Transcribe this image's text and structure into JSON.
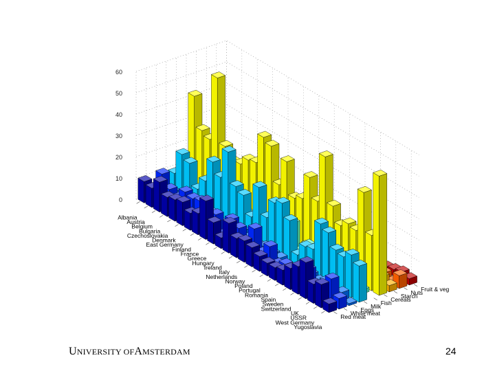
{
  "footer": {
    "institution_first_u": "U",
    "institution_rest1": "NIVERSITY OF",
    "institution_a": "A",
    "institution_rest2": "MSTERDAM",
    "page_number": "24"
  },
  "chart_data": {
    "type": "bar3d",
    "title": "",
    "z_ticks": [
      "0",
      "10",
      "20",
      "30",
      "40",
      "50",
      "60"
    ],
    "zlim": [
      0,
      60
    ],
    "countries": [
      "Albania",
      "Austria",
      "Belgium",
      "Bulgaria",
      "Czechoslovakia",
      "Denmark",
      "East Germany",
      "Finland",
      "France",
      "Greece",
      "Hungary",
      "Ireland",
      "Italy",
      "Netherlands",
      "Norway",
      "Poland",
      "Portugal",
      "Romania",
      "Spain",
      "Sweden",
      "Switzerland",
      "UK",
      "USSR",
      "West Germany",
      "Yugoslavia"
    ],
    "series": [
      {
        "name": "Red meat",
        "color": "#0000a8",
        "values": [
          10,
          9,
          14,
          9,
          10,
          11,
          8,
          10,
          18,
          10,
          5,
          14,
          9,
          10,
          9,
          7,
          6,
          6,
          7,
          10,
          13,
          17,
          9,
          11,
          4
        ]
      },
      {
        "name": "White meat",
        "color": "#0028ff",
        "values": [
          1,
          14,
          9,
          7,
          12,
          11,
          12,
          5,
          10,
          3,
          12,
          10,
          5,
          14,
          5,
          10,
          4,
          6,
          3,
          8,
          10,
          5,
          5,
          12,
          5
        ]
      },
      {
        "name": "Eggs",
        "color": "#0070ff",
        "values": [
          1,
          4,
          4,
          3,
          4,
          4,
          5,
          3,
          3,
          3,
          5,
          4,
          3,
          4,
          3,
          3,
          1,
          2,
          3,
          4,
          3,
          5,
          2,
          4,
          1
        ]
      },
      {
        "name": "Milk",
        "color": "#00c8ff",
        "values": [
          9,
          20,
          18,
          8,
          14,
          25,
          20,
          34,
          20,
          18,
          10,
          26,
          14,
          23,
          25,
          19,
          5,
          11,
          12,
          26,
          24,
          18,
          17,
          20,
          17
        ]
      },
      {
        "name": "Fish",
        "color": "#60ffc0",
        "values": [
          0,
          2,
          4,
          1,
          2,
          10,
          5,
          6,
          6,
          6,
          0,
          2,
          3,
          3,
          14,
          3,
          8,
          1,
          7,
          7,
          2,
          4,
          3,
          2,
          0
        ]
      },
      {
        "name": "Cereals",
        "color": "#ffff00",
        "values": [
          42,
          28,
          26,
          57,
          27,
          22,
          23,
          27,
          28,
          42,
          40,
          24,
          37,
          22,
          24,
          36,
          27,
          50,
          29,
          22,
          25,
          24,
          44,
          26,
          56
        ]
      },
      {
        "name": "Starch",
        "color": "#ffb000",
        "values": [
          1,
          5,
          6,
          1,
          6,
          5,
          6,
          5,
          5,
          2,
          4,
          6,
          2,
          4,
          5,
          6,
          6,
          3,
          6,
          4,
          3,
          5,
          6,
          5,
          3
        ]
      },
      {
        "name": "Nuts",
        "color": "#ff6000",
        "values": [
          6,
          1,
          2,
          4,
          1,
          1,
          1,
          1,
          2,
          8,
          5,
          2,
          4,
          2,
          1,
          2,
          5,
          5,
          6,
          1,
          1,
          1,
          3,
          1,
          6
        ]
      },
      {
        "name": "Fruit & veg",
        "color": "#c00000",
        "values": [
          2,
          4,
          4,
          4,
          4,
          2,
          4,
          2,
          7,
          7,
          4,
          3,
          7,
          4,
          2,
          7,
          8,
          3,
          7,
          2,
          5,
          2,
          3,
          4,
          3
        ]
      }
    ]
  }
}
